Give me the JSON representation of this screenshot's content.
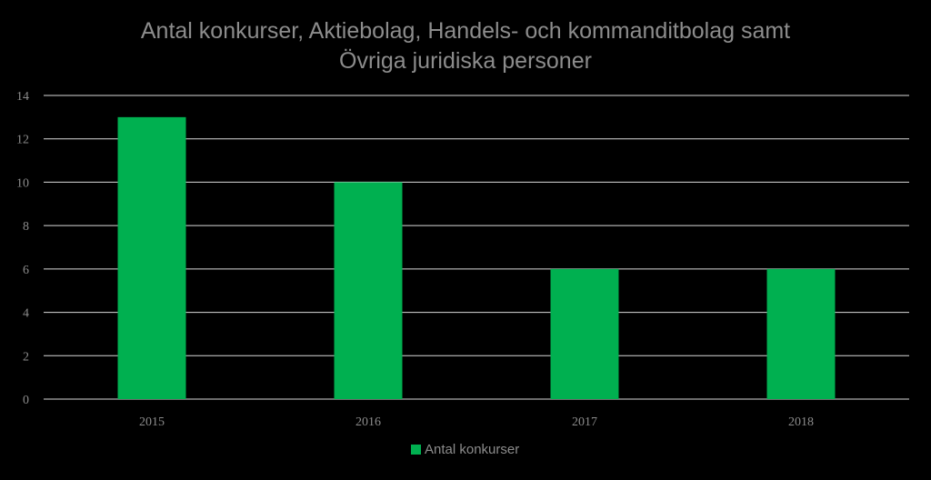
{
  "chart_data": {
    "type": "bar",
    "title_lines": [
      "Antal konkurser, Aktiebolag, Handels- och kommanditbolag samt",
      "Övriga juridiska personer"
    ],
    "categories": [
      "2015",
      "2016",
      "2017",
      "2018"
    ],
    "series": [
      {
        "name": "Antal konkurser",
        "values": [
          13,
          10,
          6,
          6
        ],
        "color": "#00b050"
      }
    ],
    "ylim": [
      0,
      14
    ],
    "yticks": [
      0,
      2,
      4,
      6,
      8,
      10,
      12,
      14
    ],
    "grid": true,
    "legend_position": "bottom-center",
    "colors": {
      "background": "#000000",
      "text": "#8c8c8c",
      "grid": "#d9d9d9"
    }
  }
}
